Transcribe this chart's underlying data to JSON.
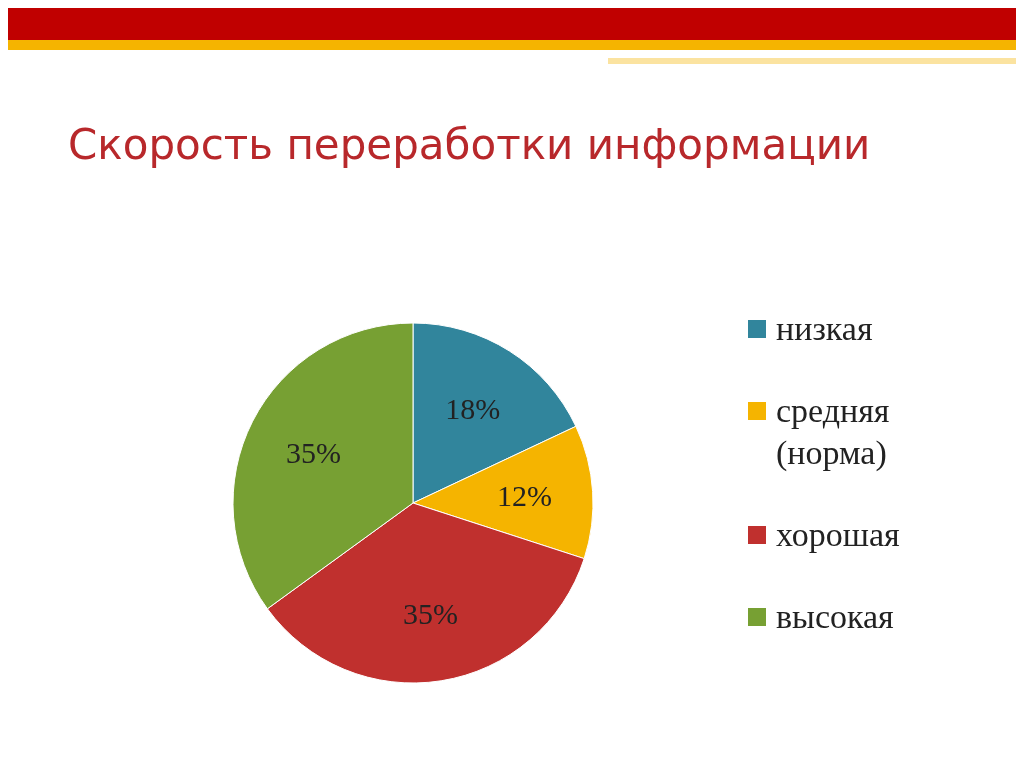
{
  "chart_data": {
    "type": "pie",
    "title": "Скорость переработки информации",
    "categories": [
      "низкая",
      "средняя (норма)",
      "хорошая",
      "высокая"
    ],
    "values": [
      18,
      12,
      35,
      35
    ],
    "value_labels": [
      "18%",
      "12%",
      "35%",
      "35%"
    ],
    "colors": [
      "#31859c",
      "#f5b400",
      "#c0302e",
      "#77a033"
    ],
    "legend": "right"
  }
}
